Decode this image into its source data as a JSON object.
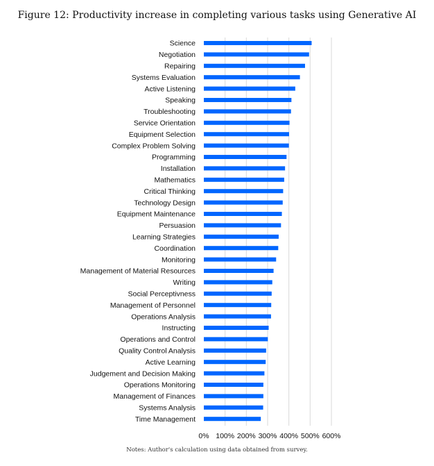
{
  "figure": {
    "title": "Figure 12: Productivity increase in completing various tasks using Generative AI",
    "notes": "Notes: Author's calculation using data obtained from survey."
  },
  "chart_data": {
    "type": "bar",
    "orientation": "horizontal",
    "title": "",
    "xlabel": "",
    "ylabel": "",
    "bar_color": "#0066ff",
    "grid_color": "#d9d9d9",
    "xlim": [
      0,
      600
    ],
    "x_ticks": [
      0,
      100,
      200,
      300,
      400,
      500,
      600
    ],
    "x_tick_labels": [
      "0%",
      "100%",
      "200%",
      "300%",
      "400%",
      "500%",
      "600%"
    ],
    "grid": "vertical",
    "legend": "none",
    "categories": [
      "Science",
      "Negotiation",
      "Repairing",
      "Systems Evaluation",
      "Active Listening",
      "Speaking",
      "Troubleshooting",
      "Service Orientation",
      "Equipment Selection",
      "Complex Problem Solving",
      "Programming",
      "Installation",
      "Mathematics",
      "Critical Thinking",
      "Technology Design",
      "Equipment Maintenance",
      "Persuasion",
      "Learning Strategies",
      "Coordination",
      "Monitoring",
      "Management of Material Resources",
      "Writing",
      "Social Perceptivness",
      "Management of Personnel",
      "Operations Analysis",
      "Instructing",
      "Operations and Control",
      "Quality Control Analysis",
      "Active Learning",
      "Judgement and Decision Making",
      "Operations Monitoring",
      "Management of Finances",
      "Systems Analysis",
      "Time Management"
    ],
    "values": [
      507,
      495,
      476,
      452,
      430,
      412,
      410,
      403,
      401,
      400,
      389,
      382,
      378,
      373,
      371,
      367,
      363,
      352,
      350,
      340,
      328,
      322,
      319,
      317,
      316,
      305,
      301,
      293,
      291,
      285,
      280,
      280,
      279,
      268
    ]
  }
}
